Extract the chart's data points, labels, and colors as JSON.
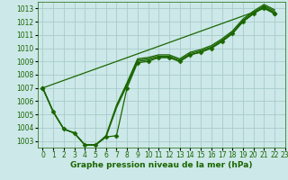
{
  "title": "Graphe pression niveau de la mer (hPa)",
  "bg_color": "#cce8e8",
  "grid_color": "#aacccc",
  "line_color": "#1a6600",
  "marker_color": "#1a6600",
  "xlim": [
    -0.5,
    23
  ],
  "ylim": [
    1002.5,
    1013.5
  ],
  "yticks": [
    1003,
    1004,
    1005,
    1006,
    1007,
    1008,
    1009,
    1010,
    1011,
    1012,
    1013
  ],
  "xticks": [
    0,
    1,
    2,
    3,
    4,
    5,
    6,
    7,
    8,
    9,
    10,
    11,
    12,
    13,
    14,
    15,
    16,
    17,
    18,
    19,
    20,
    21,
    22,
    23
  ],
  "series": [
    {
      "x": [
        0,
        1,
        2,
        3,
        4,
        5,
        6,
        7,
        8,
        9,
        10,
        11,
        12,
        13,
        14,
        15,
        16,
        17,
        18,
        19,
        20,
        21,
        22
      ],
      "y": [
        1007.0,
        1005.2,
        1003.9,
        1003.6,
        1002.7,
        1002.7,
        1003.3,
        1003.4,
        1007.0,
        1008.9,
        1009.0,
        1009.3,
        1009.3,
        1009.0,
        1009.5,
        1009.7,
        1010.0,
        1010.5,
        1011.1,
        1012.0,
        1012.6,
        1013.1,
        1012.6
      ],
      "marker": true
    },
    {
      "x": [
        0,
        1,
        2,
        3,
        4,
        5,
        6,
        7,
        8,
        9,
        10,
        11,
        12,
        13,
        14,
        15,
        16,
        17,
        18,
        19,
        20,
        21,
        22
      ],
      "y": [
        1007.0,
        1005.2,
        1003.9,
        1003.6,
        1002.7,
        1002.7,
        1003.3,
        1005.5,
        1007.2,
        1009.0,
        1009.1,
        1009.3,
        1009.3,
        1009.0,
        1009.5,
        1009.7,
        1010.0,
        1010.5,
        1011.1,
        1012.0,
        1012.6,
        1013.1,
        1012.7
      ],
      "marker": false
    },
    {
      "x": [
        0,
        1,
        2,
        3,
        4,
        5,
        6,
        7,
        8,
        9,
        10,
        11,
        12,
        13,
        14,
        15,
        16,
        17,
        18,
        19,
        20,
        21,
        22
      ],
      "y": [
        1007.0,
        1005.2,
        1003.9,
        1003.6,
        1002.7,
        1002.7,
        1003.3,
        1005.6,
        1007.3,
        1009.1,
        1009.2,
        1009.4,
        1009.4,
        1009.1,
        1009.6,
        1009.8,
        1010.1,
        1010.6,
        1011.2,
        1012.1,
        1012.7,
        1013.2,
        1012.8
      ],
      "marker": false
    },
    {
      "x": [
        0,
        1,
        2,
        3,
        4,
        5,
        6,
        7,
        8,
        9,
        10,
        11,
        12,
        13,
        14,
        15,
        16,
        17,
        18,
        19,
        20,
        21,
        22
      ],
      "y": [
        1007.0,
        1005.2,
        1003.9,
        1003.6,
        1002.7,
        1002.7,
        1003.4,
        1005.7,
        1007.4,
        1009.2,
        1009.3,
        1009.5,
        1009.5,
        1009.2,
        1009.7,
        1009.9,
        1010.2,
        1010.7,
        1011.3,
        1012.2,
        1012.8,
        1013.3,
        1012.9
      ],
      "marker": false
    },
    {
      "x": [
        0,
        21,
        22
      ],
      "y": [
        1007.0,
        1013.0,
        1012.6
      ],
      "marker": true
    }
  ],
  "lw": 0.9,
  "marker_size": 2.5,
  "tick_fontsize": 5.5,
  "title_fontsize": 6.5,
  "figsize": [
    3.2,
    2.0
  ],
  "dpi": 100
}
